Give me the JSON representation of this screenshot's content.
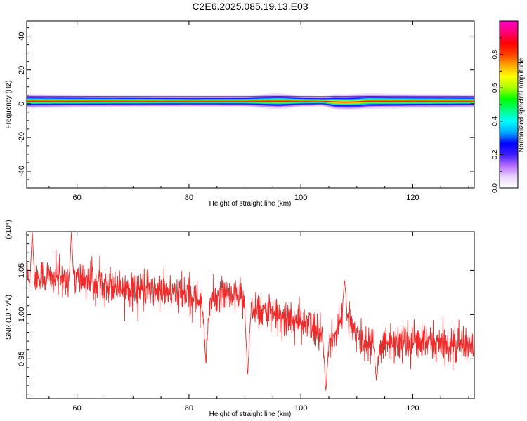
{
  "title": "C2E6.2025.085.19.13.E03",
  "colors": {
    "snr_line": "#ee2a2a",
    "frame": "#000000",
    "background": "#ffffff"
  },
  "chart_data": [
    {
      "type": "heatmap",
      "xlabel": "Height of straight line (km)",
      "ylabel": "Frequency (Hz)",
      "xlim": [
        51,
        131
      ],
      "ylim": [
        -50,
        49
      ],
      "x_ticks": [
        "60",
        "80",
        "100",
        "120"
      ],
      "y_ticks": [
        "40",
        "20",
        "0",
        "-20",
        "-40"
      ],
      "colorbar": {
        "label": "Normalized spectral amplitude",
        "range": [
          0,
          1
        ],
        "ticks": [
          "0.0",
          "0.2",
          "0.4",
          "0.6",
          "0.8"
        ],
        "colors": [
          "#ffffff",
          "#e9d4ff",
          "#b66cff",
          "#3c1cff",
          "#0000ff",
          "#00aaff",
          "#00ffff",
          "#00ff7f",
          "#00ff00",
          "#a8ff00",
          "#ffff00",
          "#ffaa00",
          "#ff4000",
          "#ff0000",
          "#ff0077",
          "#ff00c8"
        ]
      },
      "band": {
        "center_hz": 1.5,
        "peak_amplitude": 0.9,
        "feature_km": [
          96,
          106
        ],
        "x_samples_km": [
          51,
          60,
          70,
          80,
          90,
          96,
          100,
          104,
          106,
          110,
          120,
          131
        ],
        "halfwidth_hz": [
          4.2,
          3.8,
          3.6,
          3.3,
          3.4,
          4.8,
          3.5,
          3.0,
          4.6,
          4.8,
          4.2,
          3.9
        ]
      }
    },
    {
      "type": "line",
      "xlabel": "Height of straight line (km)",
      "ylabel": "SNR (10 * v/v)",
      "y_multiplier": "(x10⁴)",
      "xlim": [
        51,
        131
      ],
      "ylim": [
        0.905,
        1.094
      ],
      "x_ticks": [
        "60",
        "80",
        "100",
        "120"
      ],
      "y_ticks": [
        "1.05",
        "1.00",
        "0.95"
      ],
      "series": [
        {
          "x_start": 51,
          "x_end": 131,
          "n_points": 1600,
          "trend_km": [
            51,
            60,
            70,
            80,
            83,
            86,
            88,
            90,
            92,
            95,
            100,
            104,
            106,
            108,
            110,
            115,
            120,
            125,
            131
          ],
          "trend_value": [
            1.042,
            1.04,
            1.03,
            1.022,
            1.012,
            1.02,
            1.018,
            1.015,
            1.008,
            1.0,
            0.992,
            0.978,
            0.972,
            1.01,
            0.97,
            0.968,
            0.97,
            0.966,
            0.964
          ],
          "noise": 0.016,
          "dips": [
            {
              "x": 83.0,
              "value": 0.945
            },
            {
              "x": 90.5,
              "value": 0.928
            },
            {
              "x": 104.5,
              "value": 0.915
            },
            {
              "x": 113.5,
              "value": 0.925
            }
          ],
          "spikes": [
            {
              "x": 52.0,
              "value": 1.094
            },
            {
              "x": 59.0,
              "value": 1.094
            },
            {
              "x": 107.8,
              "value": 1.04
            }
          ]
        }
      ]
    }
  ]
}
